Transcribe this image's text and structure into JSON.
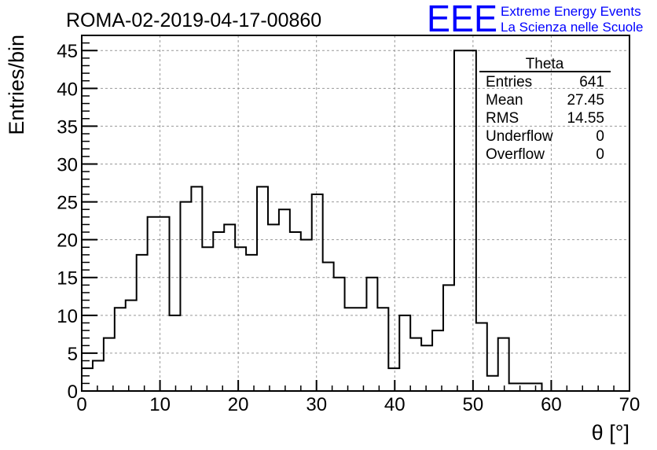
{
  "chart_data": {
    "type": "bar",
    "title": "ROMA-02-2019-04-17-00860",
    "xlabel": "θ [°]",
    "ylabel": "Entries/bin",
    "xlim": [
      0,
      70
    ],
    "ylim": [
      0,
      47
    ],
    "bin_width": 1.4,
    "xticks": [
      0,
      10,
      20,
      30,
      40,
      50,
      60,
      70
    ],
    "yticks": [
      0,
      5,
      10,
      15,
      20,
      25,
      30,
      35,
      40,
      45
    ],
    "grid": true,
    "values": [
      3,
      4,
      7,
      11,
      12,
      18,
      23,
      23,
      10,
      25,
      27,
      19,
      21,
      22,
      19,
      18,
      27,
      22,
      24,
      21,
      20,
      26,
      17,
      15,
      11,
      11,
      15,
      11,
      3,
      10,
      7,
      6,
      8,
      14,
      45,
      45,
      9,
      2,
      7,
      1,
      1,
      1,
      0,
      0,
      0,
      0,
      0,
      0,
      0,
      0
    ],
    "stats_box": {
      "title": "Theta",
      "placement": "top-right",
      "rows": [
        {
          "label": "Entries",
          "value": "641"
        },
        {
          "label": "Mean",
          "value": "27.45"
        },
        {
          "label": "RMS",
          "value": "14.55"
        },
        {
          "label": "Underflow",
          "value": "0"
        },
        {
          "label": "Overflow",
          "value": "0"
        }
      ]
    }
  },
  "logo": {
    "mark": "EEE",
    "line1": "Extreme Energy Events",
    "line2": "La Scienza nelle Scuole",
    "color": "#0000ff"
  },
  "colors": {
    "axis": "#000000",
    "grid": "#999999",
    "histogram": "#000000"
  }
}
